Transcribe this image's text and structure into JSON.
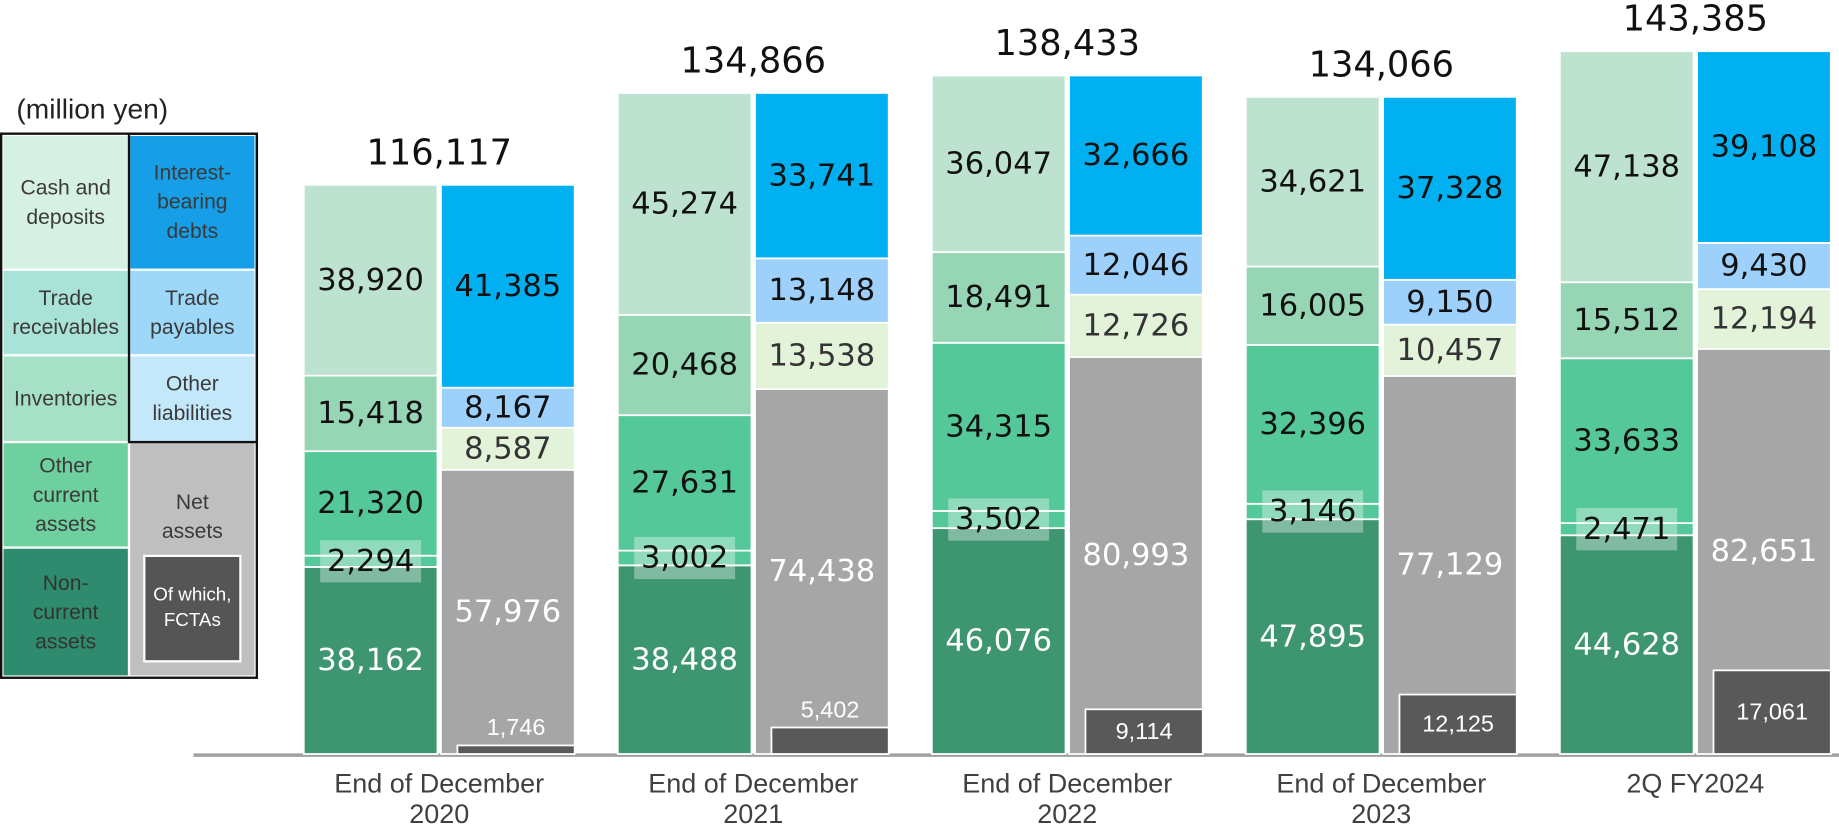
{
  "chart_data": {
    "type": "bar",
    "stacked": true,
    "unit": "(million yen)",
    "categories": [
      "End of December 2020",
      "End of December 2021",
      "End of December 2022",
      "End of December 2023",
      "2Q FY2024"
    ],
    "ylim": [
      0,
      150000
    ],
    "assets": [
      {
        "name": "Non-current assets",
        "color": "#3e9670",
        "legend_color": "#2e8b6e",
        "label_color": "#ffffff",
        "values": [
          38162,
          38488,
          46076,
          47895,
          44628
        ],
        "value_labels": [
          "38,162",
          "38,488",
          "46,076",
          "47,895",
          "44,628"
        ]
      },
      {
        "name": "Other current assets",
        "color": "#55c89a",
        "legend_color": "#6dd09e",
        "label_color": "#111111",
        "values": [
          2294,
          3002,
          3502,
          3146,
          2471
        ],
        "value_labels": [
          "2,294",
          "3,002",
          "3,502",
          "3,146",
          "2,471"
        ]
      },
      {
        "name": "Inventories",
        "color": "#55c89a",
        "legend_color": "#a6e0c6",
        "label_color": "#111111",
        "values": [
          21320,
          27631,
          34315,
          32396,
          33633
        ],
        "value_labels": [
          "21,320",
          "27,631",
          "34,315",
          "32,396",
          "33,633"
        ]
      },
      {
        "name": "Trade receivables",
        "color": "#96d6b5",
        "legend_color": "#a9e2d6",
        "label_color": "#111111",
        "values": [
          15418,
          20468,
          18491,
          16005,
          15512
        ],
        "value_labels": [
          "15,418",
          "20,468",
          "18,491",
          "16,005",
          "15,512"
        ]
      },
      {
        "name": "Cash and deposits",
        "color": "#bde3d0",
        "legend_color": "#d6f1e4",
        "label_color": "#111111",
        "values": [
          38920,
          45274,
          36047,
          34621,
          47138
        ],
        "value_labels": [
          "38,920",
          "45,274",
          "36,047",
          "34,621",
          "47,138"
        ]
      }
    ],
    "liabilities": [
      {
        "name": "Net assets",
        "color": "#a6a6a6",
        "legend_color": "#bfbfbf",
        "label_color": "#ffffff",
        "values": [
          57976,
          74438,
          80993,
          77129,
          82651
        ],
        "value_labels": [
          "57,976",
          "74,438",
          "80,993",
          "77,129",
          "82,651"
        ]
      },
      {
        "name": "Other liabilities",
        "color": "#e2f3da",
        "legend_color": "#c3e8f9",
        "label_color": "#333333",
        "values": [
          8587,
          13538,
          12726,
          10457,
          12194
        ],
        "value_labels": [
          "8,587",
          "13,538",
          "12,726",
          "10,457",
          "12,194"
        ]
      },
      {
        "name": "Trade payables",
        "color": "#9dd0fa",
        "legend_color": "#9dd8f8",
        "label_color": "#111111",
        "values": [
          8167,
          13148,
          12046,
          9150,
          9430
        ],
        "value_labels": [
          "8,167",
          "13,148",
          "12,046",
          "9,150",
          "9,430"
        ]
      },
      {
        "name": "Interest-bearing debts",
        "color": "#00b0f0",
        "legend_color": "#169ee6",
        "label_color": "#111111",
        "values": [
          41385,
          33741,
          32666,
          37328,
          39108
        ],
        "value_labels": [
          "41,385",
          "33,741",
          "32,666",
          "37,328",
          "39,108"
        ]
      }
    ],
    "subset": {
      "name": "Of which, FCTAs",
      "color": "#595959",
      "legend_color": "#555555",
      "label_color": "#ffffff",
      "values": [
        1746,
        5402,
        9114,
        12125,
        17061
      ],
      "value_labels": [
        "1,746",
        "5,402",
        "9,114",
        "12,125",
        "17,061"
      ]
    },
    "totals": {
      "values": [
        116117,
        134866,
        138433,
        134066,
        143385
      ],
      "value_labels": [
        "116,117",
        "134,866",
        "138,433",
        "134,066",
        "143,385"
      ]
    }
  }
}
